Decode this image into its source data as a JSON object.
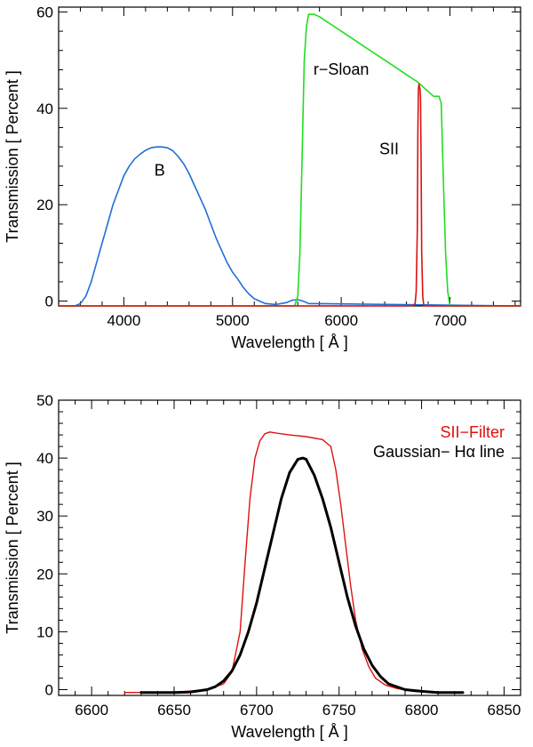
{
  "chart_data": [
    {
      "type": "line",
      "title": "",
      "xlabel": "Wavelength [ Å ]",
      "ylabel": "Transmission [ Percent ]",
      "xlim": [
        3400,
        7650
      ],
      "ylim": [
        -1,
        61
      ],
      "xticks": [
        4000,
        5000,
        6000,
        7000
      ],
      "xtick_labels": [
        "4000",
        "5000",
        "6000",
        "7000"
      ],
      "yticks": [
        0,
        20,
        40,
        60
      ],
      "ytick_labels": [
        "0",
        "20",
        "40",
        "60"
      ],
      "series": [
        {
          "name": "B",
          "color": "#1f6fd6",
          "x": [
            3400,
            3550,
            3600,
            3650,
            3700,
            3750,
            3800,
            3850,
            3900,
            3950,
            4000,
            4050,
            4100,
            4150,
            4200,
            4250,
            4300,
            4350,
            4400,
            4450,
            4500,
            4550,
            4600,
            4650,
            4700,
            4750,
            4800,
            4850,
            4900,
            4950,
            5000,
            5050,
            5100,
            5150,
            5200,
            5250,
            5300,
            5400,
            5500,
            5550,
            5600,
            5650,
            5700,
            7650
          ],
          "y": [
            -1,
            -1,
            -0.5,
            1,
            4,
            8,
            12,
            16,
            20,
            23,
            26,
            28,
            29.5,
            30.5,
            31.3,
            31.8,
            32,
            32,
            31.8,
            31.2,
            30,
            28.5,
            26.5,
            24,
            21.5,
            19,
            16,
            13,
            10.5,
            8,
            6,
            4.5,
            2.8,
            1.5,
            0.5,
            0,
            -0.5,
            -0.7,
            -0.3,
            0.2,
            0.3,
            0,
            -0.5,
            -1
          ]
        },
        {
          "name": "r-Sloan",
          "color": "#22dd22",
          "x": [
            3400,
            5570,
            5600,
            5620,
            5640,
            5660,
            5680,
            5700,
            5750,
            5800,
            5900,
            6000,
            6100,
            6200,
            6300,
            6400,
            6500,
            6600,
            6700,
            6800,
            6850,
            6900,
            6920,
            6940,
            6960,
            6980,
            7000,
            7650
          ],
          "y": [
            -1,
            -1,
            1,
            10,
            30,
            50,
            57,
            59.5,
            59.5,
            59,
            57.5,
            56,
            54.5,
            53,
            51.5,
            50,
            48.5,
            47,
            45.5,
            43.5,
            42.5,
            42.5,
            41,
            25,
            10,
            2,
            -1,
            -1
          ]
        },
        {
          "name": "SII",
          "color": "#dd1111",
          "x": [
            3400,
            6660,
            6680,
            6690,
            6700,
            6705,
            6710,
            6715,
            6720,
            6725,
            6730,
            6735,
            6740,
            6750,
            6760,
            7650
          ],
          "y": [
            -1,
            -1,
            -0.5,
            2,
            15,
            35,
            44,
            45,
            44.5,
            44,
            42,
            30,
            10,
            1,
            -1,
            -1
          ]
        }
      ],
      "annotations": [
        {
          "text": "B",
          "x": 4330,
          "y": 26,
          "color": "#000000"
        },
        {
          "text": "r−Sloan",
          "x": 6000,
          "y": 47,
          "color": "#000000"
        },
        {
          "text": "SII",
          "x": 6440,
          "y": 30.5,
          "color": "#000000"
        }
      ]
    },
    {
      "type": "line",
      "title": "",
      "xlabel": "Wavelength [ Å ]",
      "ylabel": "Transmission [ Percent ]",
      "xlim": [
        6580,
        6860
      ],
      "ylim": [
        -1,
        50
      ],
      "xticks": [
        6600,
        6650,
        6700,
        6750,
        6800,
        6850
      ],
      "xtick_labels": [
        "6600",
        "6650",
        "6700",
        "6750",
        "6800",
        "6850"
      ],
      "yticks": [
        0,
        10,
        20,
        30,
        40,
        50
      ],
      "ytick_labels": [
        "0",
        "10",
        "20",
        "30",
        "40",
        "50"
      ],
      "series": [
        {
          "name": "SII−Filter",
          "color": "#dd1111",
          "x": [
            6620,
            6650,
            6670,
            6680,
            6685,
            6690,
            6693,
            6696,
            6699,
            6702,
            6705,
            6708,
            6712,
            6720,
            6730,
            6740,
            6745,
            6748,
            6751,
            6754,
            6757,
            6760,
            6764,
            6768,
            6772,
            6778,
            6785,
            6795,
            6810
          ],
          "y": [
            -0.5,
            -0.5,
            0,
            1,
            3,
            10,
            22,
            33,
            40,
            43,
            44.2,
            44.5,
            44.3,
            44,
            43.7,
            43.2,
            42,
            38,
            32,
            25,
            18,
            12,
            7,
            4,
            2,
            0.8,
            0.2,
            -0.3,
            -0.5
          ]
        },
        {
          "name": "Gaussian− Hα line",
          "color": "#000000",
          "x": [
            6630,
            6640,
            6650,
            6660,
            6670,
            6675,
            6680,
            6685,
            6690,
            6695,
            6700,
            6705,
            6710,
            6715,
            6720,
            6725,
            6728,
            6730,
            6735,
            6740,
            6745,
            6750,
            6755,
            6760,
            6765,
            6770,
            6775,
            6780,
            6790,
            6800,
            6810,
            6825
          ],
          "y": [
            -0.5,
            -0.5,
            -0.5,
            -0.4,
            0,
            0.5,
            1.5,
            3.2,
            6,
            10,
            15,
            21,
            27,
            33,
            37.5,
            39.8,
            40,
            39.8,
            37,
            33,
            28,
            22,
            16,
            11,
            7,
            4.2,
            2.3,
            1,
            0,
            -0.3,
            -0.5,
            -0.5
          ]
        }
      ],
      "legend": [
        {
          "text": "SII−Filter",
          "color": "#dd1111"
        },
        {
          "text": "Gaussian− Hα line",
          "color": "#000000"
        }
      ]
    }
  ]
}
